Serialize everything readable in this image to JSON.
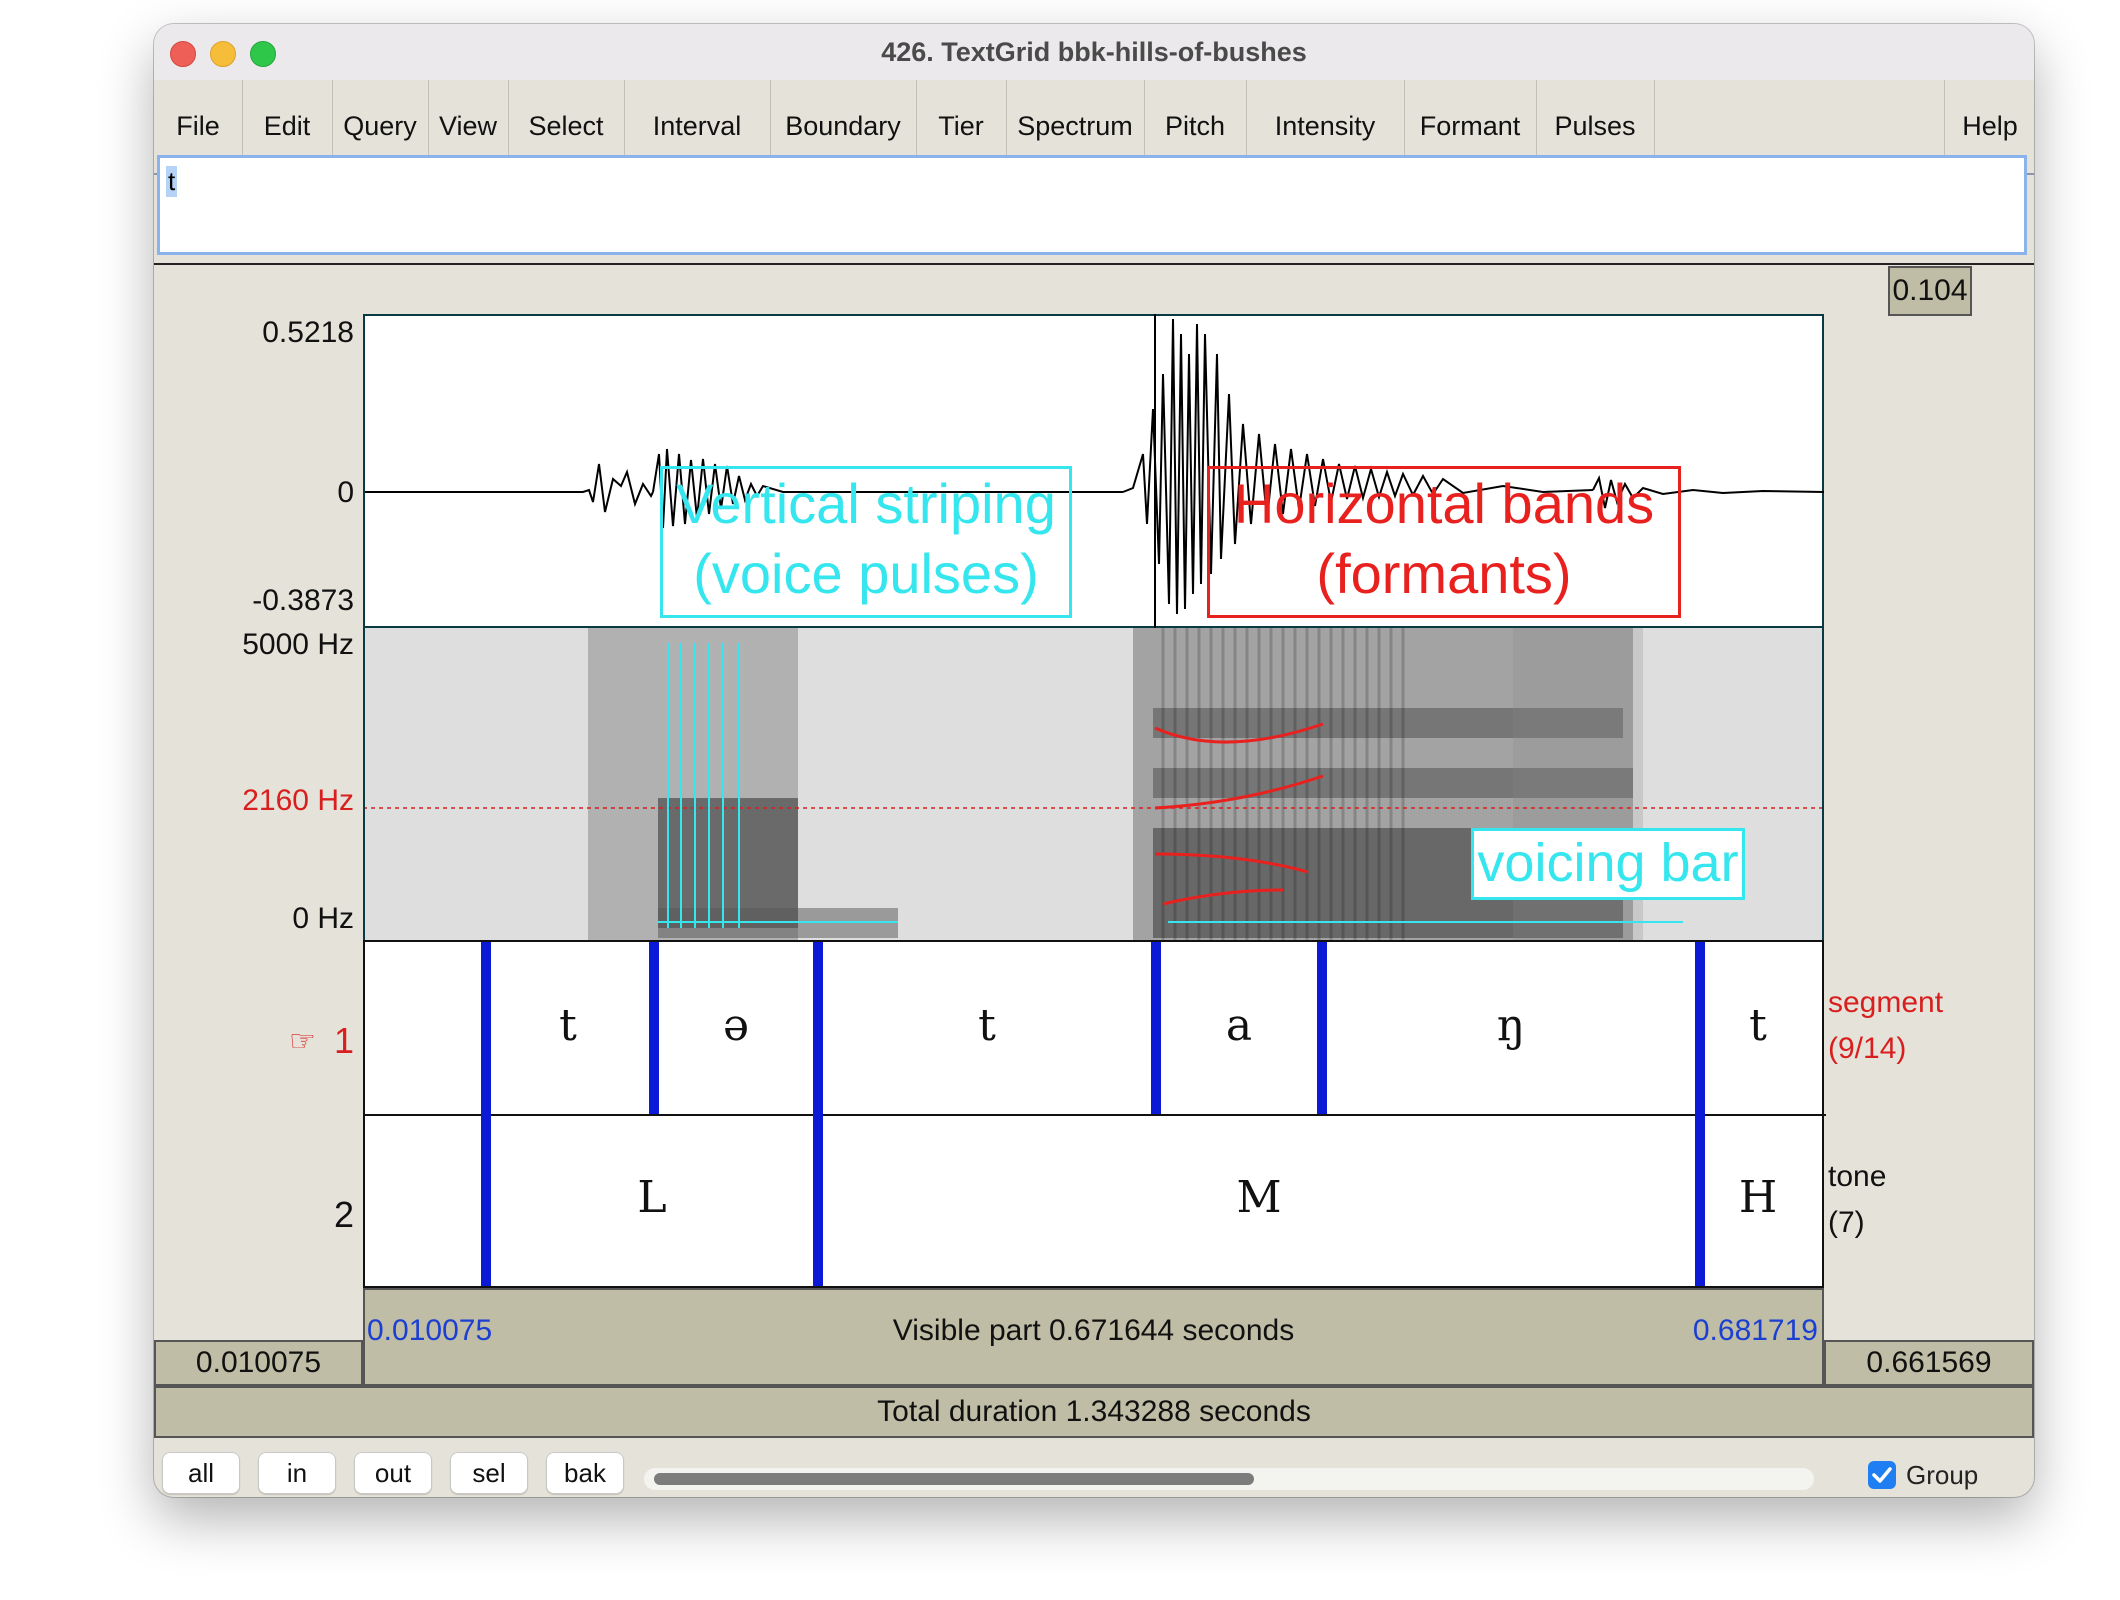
{
  "window": {
    "title": "426. TextGrid bbk-hills-of-bushes"
  },
  "menu": [
    "File",
    "Edit",
    "Query",
    "View",
    "Select",
    "Interval",
    "Boundary",
    "Tier",
    "Spectrum",
    "Pitch",
    "Intensity",
    "Formant",
    "Pulses",
    "Help"
  ],
  "text_field": {
    "value": "t"
  },
  "selection_duration": "0.104",
  "waveform": {
    "ymax": "0.5218",
    "zero": "0",
    "ymin": "-0.3873"
  },
  "spectrogram": {
    "top": "5000 Hz",
    "cursor": "2160 Hz",
    "bottom": "0 Hz",
    "cursor_color": "#d81e1e"
  },
  "annotations": {
    "striping": {
      "line1": "Vertical striping",
      "line2": "(voice pulses)",
      "color": "#36e6ee"
    },
    "bands": {
      "line1": "Horizontal bands",
      "line2": "(formants)",
      "color": "#e8211f"
    },
    "voicing": {
      "text": "voicing bar"
    }
  },
  "tiers": [
    {
      "number": "1",
      "pointer": "☞",
      "name": "segment",
      "count": "(9/14)",
      "labels": [
        "t",
        "ə",
        "t",
        "a",
        "ŋ",
        "t"
      ]
    },
    {
      "number": "2",
      "name": "tone",
      "count": "(7)",
      "labels": [
        "L",
        "M",
        "H"
      ]
    }
  ],
  "time": {
    "left_time": "0.010075",
    "right_time": "0.681719",
    "visible": "Visible part 0.671644 seconds",
    "left_box": "0.010075",
    "right_box": "0.661569",
    "total": "Total duration 1.343288 seconds"
  },
  "buttons": {
    "all": "all",
    "in": "in",
    "out": "out",
    "sel": "sel",
    "bak": "bak"
  },
  "group": {
    "label": "Group",
    "checked": true
  }
}
